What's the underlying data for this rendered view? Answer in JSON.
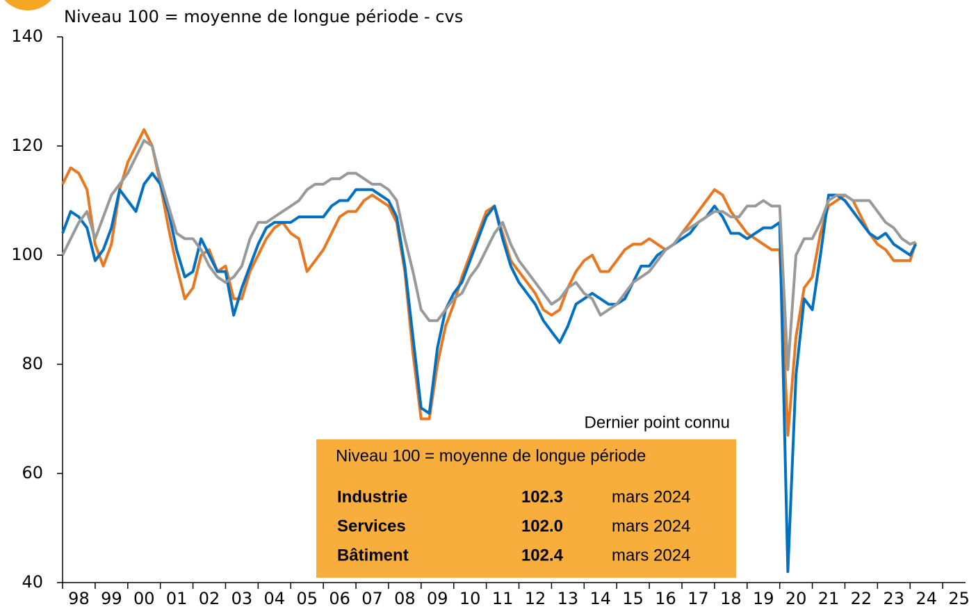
{
  "chart_data": {
    "type": "line",
    "title": "Niveau 100 = moyenne de longue période - cvs",
    "x": [
      1998,
      1998.25,
      1998.5,
      1998.75,
      1999,
      1999.25,
      1999.5,
      1999.75,
      2000,
      2000.25,
      2000.5,
      2000.75,
      2001,
      2001.25,
      2001.5,
      2001.75,
      2002,
      2002.25,
      2002.5,
      2002.75,
      2003,
      2003.25,
      2003.5,
      2003.75,
      2004,
      2004.25,
      2004.5,
      2004.75,
      2005,
      2005.25,
      2005.5,
      2005.75,
      2006,
      2006.25,
      2006.5,
      2006.75,
      2007,
      2007.25,
      2007.5,
      2007.75,
      2008,
      2008.25,
      2008.5,
      2008.75,
      2009,
      2009.25,
      2009.5,
      2009.75,
      2010,
      2010.25,
      2010.5,
      2010.75,
      2011,
      2011.25,
      2011.5,
      2011.75,
      2012,
      2012.25,
      2012.5,
      2012.75,
      2013,
      2013.25,
      2013.5,
      2013.75,
      2014,
      2014.25,
      2014.5,
      2014.75,
      2015,
      2015.25,
      2015.5,
      2015.75,
      2016,
      2016.25,
      2016.5,
      2016.75,
      2017,
      2017.25,
      2017.5,
      2017.75,
      2018,
      2018.25,
      2018.5,
      2018.75,
      2019,
      2019.25,
      2019.5,
      2019.75,
      2020,
      2020.25,
      2020.5,
      2020.75,
      2021,
      2021.25,
      2021.5,
      2021.75,
      2022,
      2022.25,
      2022.5,
      2022.75,
      2023,
      2023.25,
      2023.5,
      2023.75,
      2024,
      2024.17
    ],
    "series": [
      {
        "name": "Industrie",
        "color": "#e87722",
        "latest": {
          "value": 102.3,
          "label": "102.3"
        },
        "date": "mars 2024",
        "values": [
          113,
          116,
          115,
          112,
          102,
          98,
          102,
          112,
          117,
          120,
          123,
          120,
          113,
          105,
          98,
          92,
          94,
          100,
          101,
          97,
          98,
          92,
          92,
          97,
          100,
          103,
          105,
          106,
          104,
          103,
          97,
          99,
          101,
          104,
          107,
          108,
          108,
          110,
          111,
          110,
          109,
          106,
          97,
          82,
          70,
          70,
          80,
          87,
          91,
          96,
          100,
          104,
          108,
          109,
          104,
          99,
          97,
          95,
          93,
          90,
          89,
          90,
          94,
          97,
          99,
          100,
          97,
          97,
          99,
          101,
          102,
          102,
          103,
          102,
          101,
          102,
          104,
          106,
          108,
          110,
          112,
          111,
          108,
          106,
          104,
          103,
          102,
          101,
          101,
          67,
          85,
          94,
          96,
          104,
          109,
          110,
          111,
          110,
          107,
          104,
          102,
          101,
          99,
          99,
          99,
          102.3
        ]
      },
      {
        "name": "Services",
        "color": "#0070c0",
        "latest": {
          "value": 102.0,
          "label": "102.0"
        },
        "date": "mars 2024",
        "values": [
          104,
          108,
          107,
          105,
          99,
          101,
          105,
          112,
          110,
          108,
          113,
          115,
          113,
          108,
          101,
          96,
          97,
          103,
          100,
          97,
          97,
          89,
          94,
          98,
          102,
          105,
          106,
          106,
          106,
          107,
          107,
          107,
          107,
          109,
          110,
          110,
          112,
          112,
          112,
          111,
          110,
          107,
          98,
          85,
          72,
          71,
          83,
          90,
          93,
          95,
          99,
          103,
          107,
          109,
          103,
          98,
          95,
          93,
          91,
          88,
          86,
          84,
          87,
          91,
          92,
          93,
          92,
          91,
          91,
          92,
          95,
          98,
          98,
          100,
          101,
          102,
          103,
          104,
          106,
          107,
          109,
          107,
          104,
          104,
          103,
          104,
          105,
          105,
          106,
          42,
          78,
          92,
          90,
          100,
          111,
          111,
          110,
          108,
          106,
          104,
          103,
          104,
          102,
          101,
          100,
          102.0
        ]
      },
      {
        "name": "Bâtiment",
        "color": "#999999",
        "latest": {
          "value": 102.4,
          "label": "102.4"
        },
        "date": "mars 2024",
        "values": [
          100,
          103,
          106,
          108,
          103,
          107,
          111,
          113,
          115,
          118,
          121,
          120,
          114,
          109,
          104,
          103,
          103,
          101,
          98,
          96,
          95,
          96,
          98,
          103,
          106,
          106,
          107,
          108,
          109,
          110,
          112,
          113,
          113,
          114,
          114,
          115,
          115,
          114,
          113,
          113,
          112,
          110,
          103,
          97,
          90,
          88,
          88,
          90,
          92,
          93,
          96,
          98,
          101,
          104,
          106,
          102,
          99,
          97,
          95,
          93,
          91,
          92,
          94,
          95,
          93,
          92,
          89,
          90,
          91,
          93,
          95,
          96,
          97,
          99,
          101,
          102,
          104,
          105,
          106,
          107,
          108,
          108,
          107,
          107,
          109,
          109,
          110,
          109,
          109,
          79,
          100,
          103,
          103,
          106,
          110,
          111,
          111,
          110,
          110,
          110,
          108,
          106,
          105,
          103,
          102,
          102.4
        ]
      }
    ],
    "xlim": [
      1998,
      2025.7
    ],
    "xticks": [
      {
        "value": 1998,
        "label": "98"
      },
      {
        "value": 1999,
        "label": "99"
      },
      {
        "value": 2000,
        "label": "00"
      },
      {
        "value": 2001,
        "label": "01"
      },
      {
        "value": 2002,
        "label": "02"
      },
      {
        "value": 2003,
        "label": "03"
      },
      {
        "value": 2004,
        "label": "04"
      },
      {
        "value": 2005,
        "label": "05"
      },
      {
        "value": 2006,
        "label": "06"
      },
      {
        "value": 2007,
        "label": "07"
      },
      {
        "value": 2008,
        "label": "08"
      },
      {
        "value": 2009,
        "label": "09"
      },
      {
        "value": 2010,
        "label": "10"
      },
      {
        "value": 2011,
        "label": "11"
      },
      {
        "value": 2012,
        "label": "12"
      },
      {
        "value": 2013,
        "label": "13"
      },
      {
        "value": 2014,
        "label": "14"
      },
      {
        "value": 2015,
        "label": "15"
      },
      {
        "value": 2016,
        "label": "16"
      },
      {
        "value": 2017,
        "label": "17"
      },
      {
        "value": 2018,
        "label": "18"
      },
      {
        "value": 2019,
        "label": "19"
      },
      {
        "value": 2020,
        "label": "20"
      },
      {
        "value": 2021,
        "label": "21"
      },
      {
        "value": 2022,
        "label": "22"
      },
      {
        "value": 2023,
        "label": "23"
      },
      {
        "value": 2024,
        "label": "24"
      },
      {
        "value": 2025,
        "label": "25"
      }
    ],
    "ylim": [
      40,
      140
    ],
    "yticks": [
      40,
      60,
      80,
      100,
      120,
      140
    ],
    "legend_caption": "Dernier point connu",
    "legend_heading": "Niveau 100 = moyenne de longue période"
  }
}
